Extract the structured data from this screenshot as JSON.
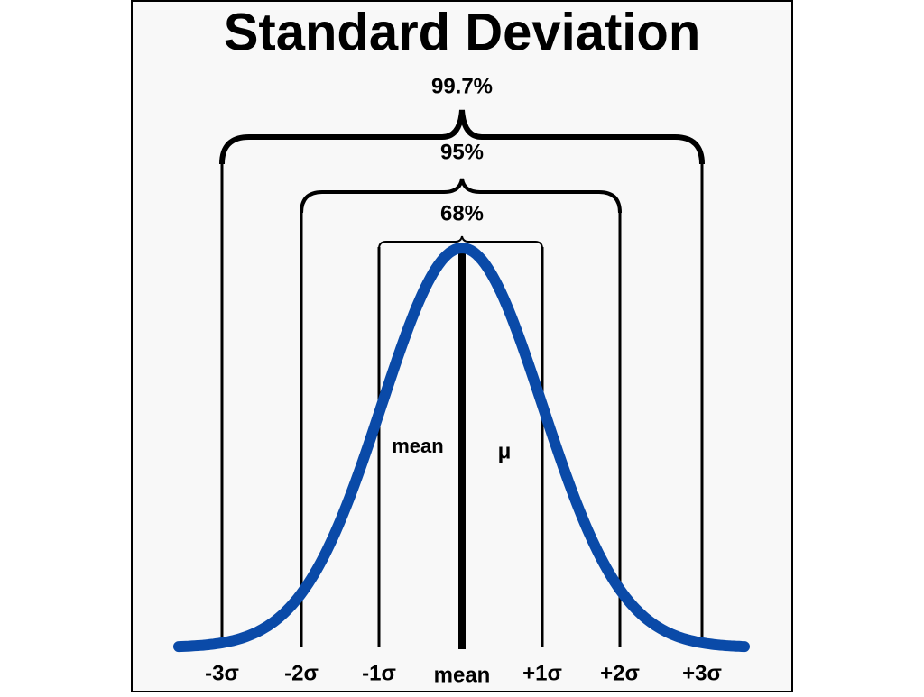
{
  "title": "Standard Deviation",
  "intervals": [
    "99.7%",
    "95%",
    "68%"
  ],
  "inner_labels": [
    "mean",
    "μ"
  ],
  "axis_labels": [
    "-3σ",
    "-2σ",
    "-1σ",
    "mean",
    "+1σ",
    "+2σ",
    "+3σ"
  ]
}
